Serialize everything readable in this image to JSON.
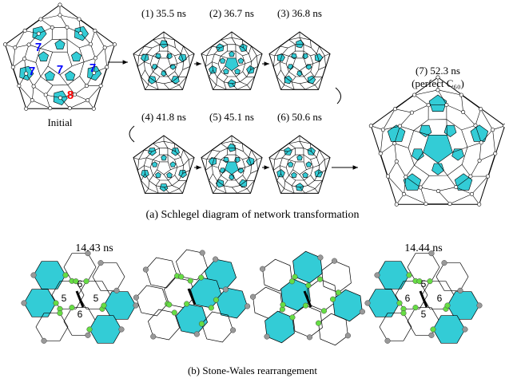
{
  "panel_a": {
    "initial": {
      "label": "Initial",
      "ring_labels": [
        "7",
        "7",
        "7",
        "7",
        "8"
      ]
    },
    "steps": [
      "(1) 35.5 ns",
      "(2) 36.7 ns",
      "(3) 36.8 ns",
      "(4) 41.8 ns",
      "(5) 45.1 ns",
      "(6) 50.6 ns"
    ],
    "final": {
      "label": "(7) 52.3 ns",
      "note": "(perfect C₆₀)"
    },
    "caption": "(a) Schlegel diagram of network transformation"
  },
  "panel_b": {
    "time_before": "14.43 ns",
    "time_after": "14.44 ns",
    "rings_before": [
      "6",
      "5",
      "5",
      "6"
    ],
    "rings_after": [
      "5",
      "6",
      "6",
      "5"
    ],
    "caption": "(b) Stone-Wales rearrangement"
  }
}
